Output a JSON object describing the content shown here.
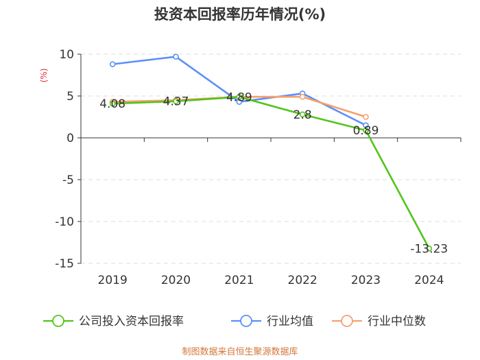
{
  "chart_data": {
    "type": "line",
    "title": "投资本回报率历年情况(%)",
    "ylabel": "(%)",
    "categories": [
      "2019",
      "2020",
      "2021",
      "2022",
      "2023",
      "2024"
    ],
    "ylim": [
      -15,
      10
    ],
    "yticks": [
      10,
      5,
      0,
      -5,
      -10,
      -15
    ],
    "ytick_labels": [
      "10",
      "5",
      "0",
      "-5",
      "-10",
      "-15"
    ],
    "grid": true,
    "legend_position": "bottom",
    "series": [
      {
        "name": "公司投入资本回报率",
        "color": "#52c41a",
        "values": [
          4.08,
          4.37,
          4.89,
          2.8,
          0.89,
          -13.23
        ],
        "labels": [
          "4.08",
          "4.37",
          "4.89",
          "2.8",
          "0.89",
          "-13.23"
        ]
      },
      {
        "name": "行业均值",
        "color": "#5b8ff9",
        "values": [
          8.8,
          9.7,
          4.3,
          5.3,
          1.5,
          null
        ],
        "labels": []
      },
      {
        "name": "行业中位数",
        "color": "#f6a06a",
        "values": [
          4.3,
          4.5,
          4.9,
          4.9,
          2.5,
          null
        ],
        "labels": []
      }
    ]
  },
  "source": "制图数据来自恒生聚源数据库",
  "colors": {
    "title": "#333333",
    "axis": "#333333",
    "grid": "#dddddd",
    "unit": "#e0303a",
    "source": "#d4763a"
  }
}
